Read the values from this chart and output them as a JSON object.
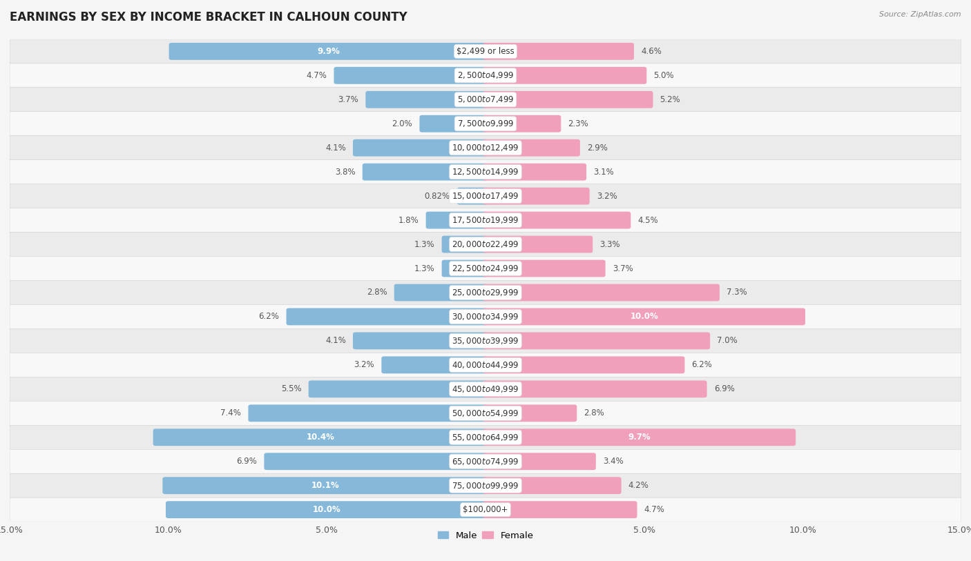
{
  "title": "EARNINGS BY SEX BY INCOME BRACKET IN CALHOUN COUNTY",
  "source": "Source: ZipAtlas.com",
  "categories": [
    "$2,499 or less",
    "$2,500 to $4,999",
    "$5,000 to $7,499",
    "$7,500 to $9,999",
    "$10,000 to $12,499",
    "$12,500 to $14,999",
    "$15,000 to $17,499",
    "$17,500 to $19,999",
    "$20,000 to $22,499",
    "$22,500 to $24,999",
    "$25,000 to $29,999",
    "$30,000 to $34,999",
    "$35,000 to $39,999",
    "$40,000 to $44,999",
    "$45,000 to $49,999",
    "$50,000 to $54,999",
    "$55,000 to $64,999",
    "$65,000 to $74,999",
    "$75,000 to $99,999",
    "$100,000+"
  ],
  "male_values": [
    9.9,
    4.7,
    3.7,
    2.0,
    4.1,
    3.8,
    0.82,
    1.8,
    1.3,
    1.3,
    2.8,
    6.2,
    4.1,
    3.2,
    5.5,
    7.4,
    10.4,
    6.9,
    10.1,
    10.0
  ],
  "female_values": [
    4.6,
    5.0,
    5.2,
    2.3,
    2.9,
    3.1,
    3.2,
    4.5,
    3.3,
    3.7,
    7.3,
    10.0,
    7.0,
    6.2,
    6.9,
    2.8,
    9.7,
    3.4,
    4.2,
    4.7
  ],
  "male_color": "#85B8D9",
  "female_color": "#F0A0BA",
  "background_color": "#F5F5F5",
  "row_colors": [
    "#EBEBEB",
    "#F8F8F8"
  ],
  "xlim": 15.0,
  "title_fontsize": 12,
  "label_fontsize": 8.5,
  "category_fontsize": 8.5,
  "inside_threshold": 7.5
}
